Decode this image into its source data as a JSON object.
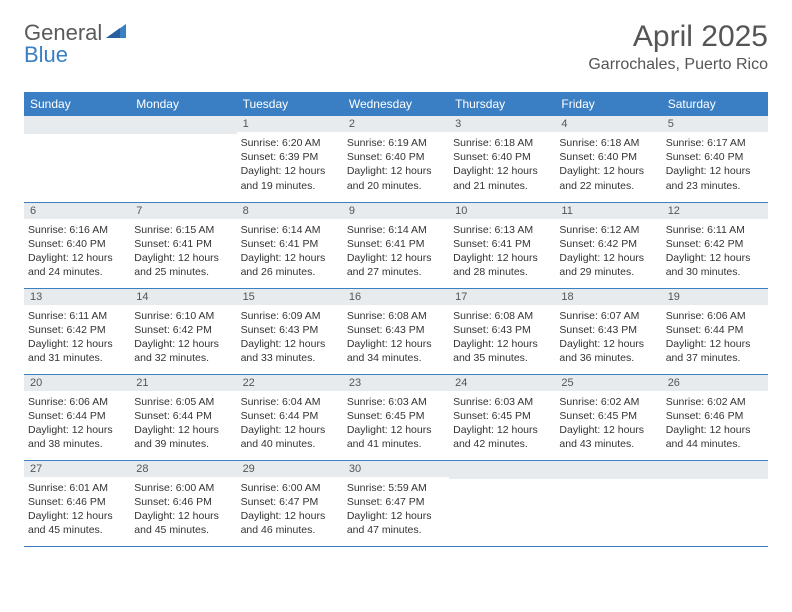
{
  "logo": {
    "word1": "General",
    "word2": "Blue"
  },
  "title": "April 2025",
  "location": "Garrochales, Puerto Rico",
  "colors": {
    "header_bg": "#3a7fc4",
    "header_text": "#ffffff",
    "daynum_bg": "#e8ebed",
    "daynum_text": "#555555",
    "border": "#3a7fc4",
    "body_text": "#333333",
    "page_bg": "#ffffff"
  },
  "dayHeaders": [
    "Sunday",
    "Monday",
    "Tuesday",
    "Wednesday",
    "Thursday",
    "Friday",
    "Saturday"
  ],
  "weeks": [
    [
      null,
      null,
      {
        "n": "1",
        "sr": "6:20 AM",
        "ss": "6:39 PM",
        "dl": "12 hours and 19 minutes."
      },
      {
        "n": "2",
        "sr": "6:19 AM",
        "ss": "6:40 PM",
        "dl": "12 hours and 20 minutes."
      },
      {
        "n": "3",
        "sr": "6:18 AM",
        "ss": "6:40 PM",
        "dl": "12 hours and 21 minutes."
      },
      {
        "n": "4",
        "sr": "6:18 AM",
        "ss": "6:40 PM",
        "dl": "12 hours and 22 minutes."
      },
      {
        "n": "5",
        "sr": "6:17 AM",
        "ss": "6:40 PM",
        "dl": "12 hours and 23 minutes."
      }
    ],
    [
      {
        "n": "6",
        "sr": "6:16 AM",
        "ss": "6:40 PM",
        "dl": "12 hours and 24 minutes."
      },
      {
        "n": "7",
        "sr": "6:15 AM",
        "ss": "6:41 PM",
        "dl": "12 hours and 25 minutes."
      },
      {
        "n": "8",
        "sr": "6:14 AM",
        "ss": "6:41 PM",
        "dl": "12 hours and 26 minutes."
      },
      {
        "n": "9",
        "sr": "6:14 AM",
        "ss": "6:41 PM",
        "dl": "12 hours and 27 minutes."
      },
      {
        "n": "10",
        "sr": "6:13 AM",
        "ss": "6:41 PM",
        "dl": "12 hours and 28 minutes."
      },
      {
        "n": "11",
        "sr": "6:12 AM",
        "ss": "6:42 PM",
        "dl": "12 hours and 29 minutes."
      },
      {
        "n": "12",
        "sr": "6:11 AM",
        "ss": "6:42 PM",
        "dl": "12 hours and 30 minutes."
      }
    ],
    [
      {
        "n": "13",
        "sr": "6:11 AM",
        "ss": "6:42 PM",
        "dl": "12 hours and 31 minutes."
      },
      {
        "n": "14",
        "sr": "6:10 AM",
        "ss": "6:42 PM",
        "dl": "12 hours and 32 minutes."
      },
      {
        "n": "15",
        "sr": "6:09 AM",
        "ss": "6:43 PM",
        "dl": "12 hours and 33 minutes."
      },
      {
        "n": "16",
        "sr": "6:08 AM",
        "ss": "6:43 PM",
        "dl": "12 hours and 34 minutes."
      },
      {
        "n": "17",
        "sr": "6:08 AM",
        "ss": "6:43 PM",
        "dl": "12 hours and 35 minutes."
      },
      {
        "n": "18",
        "sr": "6:07 AM",
        "ss": "6:43 PM",
        "dl": "12 hours and 36 minutes."
      },
      {
        "n": "19",
        "sr": "6:06 AM",
        "ss": "6:44 PM",
        "dl": "12 hours and 37 minutes."
      }
    ],
    [
      {
        "n": "20",
        "sr": "6:06 AM",
        "ss": "6:44 PM",
        "dl": "12 hours and 38 minutes."
      },
      {
        "n": "21",
        "sr": "6:05 AM",
        "ss": "6:44 PM",
        "dl": "12 hours and 39 minutes."
      },
      {
        "n": "22",
        "sr": "6:04 AM",
        "ss": "6:44 PM",
        "dl": "12 hours and 40 minutes."
      },
      {
        "n": "23",
        "sr": "6:03 AM",
        "ss": "6:45 PM",
        "dl": "12 hours and 41 minutes."
      },
      {
        "n": "24",
        "sr": "6:03 AM",
        "ss": "6:45 PM",
        "dl": "12 hours and 42 minutes."
      },
      {
        "n": "25",
        "sr": "6:02 AM",
        "ss": "6:45 PM",
        "dl": "12 hours and 43 minutes."
      },
      {
        "n": "26",
        "sr": "6:02 AM",
        "ss": "6:46 PM",
        "dl": "12 hours and 44 minutes."
      }
    ],
    [
      {
        "n": "27",
        "sr": "6:01 AM",
        "ss": "6:46 PM",
        "dl": "12 hours and 45 minutes."
      },
      {
        "n": "28",
        "sr": "6:00 AM",
        "ss": "6:46 PM",
        "dl": "12 hours and 45 minutes."
      },
      {
        "n": "29",
        "sr": "6:00 AM",
        "ss": "6:47 PM",
        "dl": "12 hours and 46 minutes."
      },
      {
        "n": "30",
        "sr": "5:59 AM",
        "ss": "6:47 PM",
        "dl": "12 hours and 47 minutes."
      },
      null,
      null,
      null
    ]
  ],
  "labels": {
    "sunrise": "Sunrise:",
    "sunset": "Sunset:",
    "daylight": "Daylight:"
  }
}
